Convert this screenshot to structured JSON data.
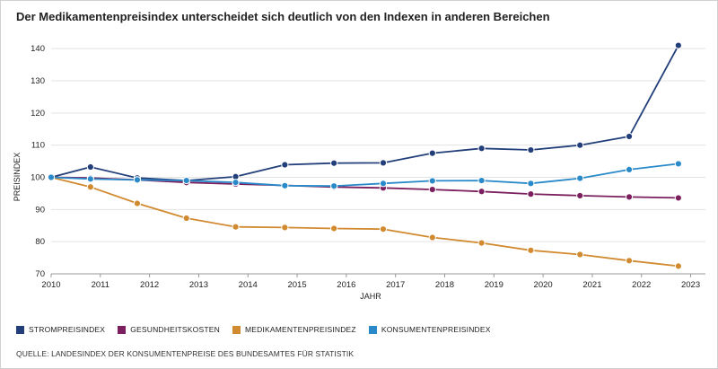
{
  "title": "Der Medikamentenpreisindex unterscheidet sich deutlich von den Indexen in anderen Bereichen",
  "source": "QUELLE: LANDESINDEX DER KONSUMENTENPREISE DES BUNDESAMTES FÜR STATISTIK",
  "chart_data": {
    "type": "line",
    "title": "Der Medikamentenpreisindex unterscheidet sich deutlich von den Indexen in anderen Bereichen",
    "xlabel": "JAHR",
    "ylabel": "PREISINDEX",
    "xlim": [
      2010,
      2023.3
    ],
    "ylim": [
      70,
      142
    ],
    "x_ticks": [
      2010,
      2011,
      2012,
      2013,
      2014,
      2015,
      2016,
      2017,
      2018,
      2019,
      2020,
      2021,
      2022,
      2023
    ],
    "x_tick_labels": [
      "2010",
      "2011",
      "2012",
      "2013",
      "2014",
      "2015",
      "2016",
      "2017",
      "2018",
      "2019",
      "2020",
      "2021",
      "2022",
      "2023"
    ],
    "y_ticks": [
      70,
      80,
      90,
      100,
      110,
      120,
      130,
      140
    ],
    "y_tick_labels": [
      "70",
      "80",
      "90",
      "100",
      "110",
      "120",
      "130",
      "140"
    ],
    "grid": "horizontal",
    "x": [
      2010,
      2010.8,
      2011.75,
      2012.75,
      2013.75,
      2014.75,
      2015.75,
      2016.75,
      2017.75,
      2018.75,
      2019.75,
      2020.75,
      2021.75,
      2022.75
    ],
    "series": [
      {
        "name": "STROMPREISINDEX",
        "color": "#233f7a",
        "values": [
          100,
          103.2,
          99.8,
          99.0,
          100.2,
          103.9,
          104.4,
          104.5,
          107.5,
          109.0,
          108.5,
          110.0,
          112.7,
          141.0
        ]
      },
      {
        "name": "GESUNDHEITSKOSTEN",
        "color": "#7b1f5e",
        "values": [
          100,
          99.8,
          99.2,
          98.4,
          97.9,
          97.5,
          97.0,
          96.7,
          96.2,
          95.6,
          94.8,
          94.3,
          93.9,
          93.6
        ]
      },
      {
        "name": "MEDIKAMENTENPREISINDEZ",
        "color": "#d18a30",
        "values": [
          100,
          97.0,
          91.9,
          87.3,
          84.6,
          84.4,
          84.1,
          83.9,
          81.3,
          79.6,
          77.3,
          76.0,
          74.1,
          72.4
        ]
      },
      {
        "name": "KONSUMENTENPREISINDEX",
        "color": "#2a8ac9",
        "values": [
          100,
          99.5,
          99.2,
          99.0,
          98.4,
          97.4,
          97.3,
          98.1,
          98.9,
          99.0,
          98.1,
          99.7,
          102.4,
          104.2
        ]
      }
    ]
  }
}
